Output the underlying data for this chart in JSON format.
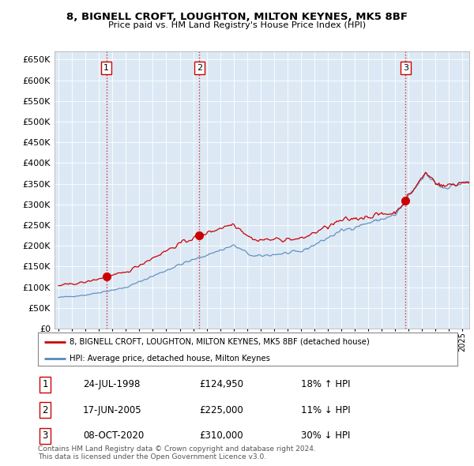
{
  "title": "8, BIGNELL CROFT, LOUGHTON, MILTON KEYNES, MK5 8BF",
  "subtitle": "Price paid vs. HM Land Registry's House Price Index (HPI)",
  "ytick_values": [
    0,
    50000,
    100000,
    150000,
    200000,
    250000,
    300000,
    350000,
    400000,
    450000,
    500000,
    550000,
    600000,
    650000
  ],
  "ylim": [
    0,
    670000
  ],
  "xlim_start": 1994.7,
  "xlim_end": 2025.5,
  "sale_dates": [
    1998.56,
    2005.46,
    2020.77
  ],
  "sale_prices": [
    124950,
    225000,
    310000
  ],
  "sale_labels": [
    "1",
    "2",
    "3"
  ],
  "vline_color": "#cc0000",
  "sale_marker_color": "#cc0000",
  "legend_entry1": "8, BIGNELL CROFT, LOUGHTON, MILTON KEYNES, MK5 8BF (detached house)",
  "legend_entry2": "HPI: Average price, detached house, Milton Keynes",
  "table_rows": [
    [
      "1",
      "24-JUL-1998",
      "£124,950",
      "18% ↑ HPI"
    ],
    [
      "2",
      "17-JUN-2005",
      "£225,000",
      "11% ↓ HPI"
    ],
    [
      "3",
      "08-OCT-2020",
      "£310,000",
      "30% ↓ HPI"
    ]
  ],
  "footnote": "Contains HM Land Registry data © Crown copyright and database right 2024.\nThis data is licensed under the Open Government Licence v3.0.",
  "background_color": "#ffffff",
  "plot_bg_color": "#dce9f5",
  "grid_color": "#ffffff",
  "red_line_color": "#cc0000",
  "blue_line_color": "#5588bb"
}
